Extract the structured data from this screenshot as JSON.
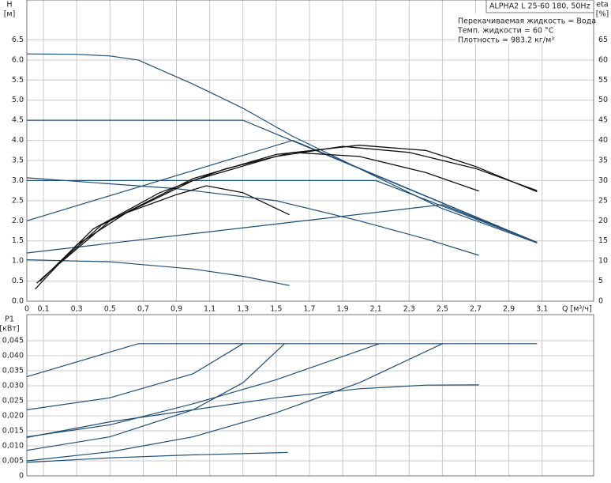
{
  "chart_data": [
    {
      "type": "line",
      "ylabel": [
        "H",
        "[м]"
      ],
      "y2label": [
        "eta",
        "[%]"
      ],
      "xlabel": "Q [м³/ч]",
      "annotations": [
        "ALPHA2 L 25-60 180, 50Hz",
        "Перекачиваемая жидкость = Вода",
        "Темп. жидкости = 60 °C",
        "Плотность = 983.2 кг/м³"
      ],
      "xlim": [
        0,
        3.41
      ],
      "xticks": [
        0,
        {
          "value": 0.1,
          "label": "0,1"
        },
        {
          "value": 0.3,
          "label": "0,3"
        },
        {
          "value": 0.5,
          "label": "0,5"
        },
        {
          "value": 0.7,
          "label": "0,7"
        },
        {
          "value": 0.9,
          "label": "0,9"
        },
        {
          "value": 1.1,
          "label": "1,1"
        },
        {
          "value": 1.3,
          "label": "1,3"
        },
        {
          "value": 1.5,
          "label": "1,5"
        },
        {
          "value": 1.7,
          "label": "1,7"
        },
        {
          "value": 1.9,
          "label": "1,9"
        },
        {
          "value": 2.1,
          "label": "2,1"
        },
        {
          "value": 2.3,
          "label": "2,3"
        },
        {
          "value": 2.5,
          "label": "2,5"
        },
        {
          "value": 2.7,
          "label": "2,7"
        },
        {
          "value": 2.9,
          "label": "2,9"
        },
        {
          "value": 3.1,
          "label": "3,1"
        }
      ],
      "ylim": [
        0,
        7
      ],
      "yticks": [
        {
          "value": 0,
          "label": "0.0"
        },
        0.5,
        {
          "value": 1,
          "label": "1.0"
        },
        1.5,
        {
          "value": 2,
          "label": "2.0"
        },
        2.5,
        {
          "value": 3,
          "label": "3.0"
        },
        3.5,
        {
          "value": 4,
          "label": "4.0"
        },
        4.5,
        {
          "value": 5,
          "label": "5.0"
        },
        5.5,
        {
          "value": 6,
          "label": "6.0"
        },
        6.5
      ],
      "y2lim": [
        0,
        70
      ],
      "y2ticks": [
        0,
        5,
        10,
        15,
        20,
        25,
        30,
        35,
        40,
        45,
        50,
        55,
        60,
        65
      ],
      "grid": true,
      "series": [
        {
          "color": "#1f4d74",
          "x": [
            0,
            0.3,
            0.5,
            0.67,
            1.0,
            1.3,
            1.6,
            2.0,
            2.5,
            3.07
          ],
          "values": [
            6.15,
            6.14,
            6.1,
            6.0,
            5.4,
            4.8,
            4.1,
            3.3,
            2.3,
            1.45
          ]
        },
        {
          "color": "#1f4d74",
          "x": [
            0,
            1.3,
            3.07
          ],
          "values": [
            4.5,
            4.5,
            1.46
          ]
        },
        {
          "color": "#1f4d74",
          "x": [
            0,
            2.1,
            3.07
          ],
          "values": [
            3.0,
            3.0,
            1.46
          ]
        },
        {
          "color": "#1f4d74",
          "x": [
            0,
            1.6,
            3.07
          ],
          "values": [
            2.0,
            4.0,
            1.46
          ]
        },
        {
          "color": "#1f4d74",
          "x": [
            0,
            2.5,
            3.07
          ],
          "values": [
            1.2,
            2.4,
            1.46
          ]
        },
        {
          "color": "#1f4d74",
          "x": [
            0,
            0.9,
            1.5,
            2.0,
            2.4,
            2.72
          ],
          "values": [
            3.07,
            2.8,
            2.5,
            2.0,
            1.55,
            1.14
          ]
        },
        {
          "color": "#1f4d74",
          "x": [
            0,
            0.5,
            1.0,
            1.3,
            1.58
          ],
          "values": [
            1.03,
            0.98,
            0.8,
            0.62,
            0.39
          ]
        },
        {
          "color": "#111111",
          "axis": "y2",
          "x": [
            0.05,
            0.3,
            0.6,
            0.9,
            1.08,
            1.3,
            1.58
          ],
          "values": [
            3,
            14,
            22,
            26.5,
            28.7,
            27,
            21.5
          ]
        },
        {
          "color": "#111111",
          "axis": "y2",
          "x": [
            0.08,
            0.4,
            0.8,
            1.2,
            1.6,
            2.0,
            2.4,
            2.72
          ],
          "values": [
            5,
            18,
            27,
            33,
            37,
            36,
            32,
            27.4
          ]
        },
        {
          "color": "#111111",
          "axis": "y2",
          "x": [
            0.1,
            0.5,
            1.0,
            1.5,
            1.9,
            2.3,
            2.7,
            3.07
          ],
          "values": [
            6,
            20,
            30,
            36,
            38.5,
            37,
            33,
            27.5
          ]
        },
        {
          "color": "#111111",
          "axis": "y2",
          "x": [
            0.06,
            0.45,
            1.0,
            1.5,
            2.0,
            2.4,
            2.7,
            3.07
          ],
          "values": [
            4.5,
            19,
            30.5,
            36.5,
            38.8,
            37.5,
            33.5,
            27.2
          ]
        }
      ]
    },
    {
      "type": "line",
      "ylabel": [
        "P1",
        "[кВт]"
      ],
      "xlim": [
        0,
        3.41
      ],
      "xticks": [
        0,
        0.1,
        0.3,
        0.5,
        0.7,
        0.9,
        1.1,
        1.3,
        1.5,
        1.7,
        1.9,
        2.1,
        2.3,
        2.5,
        2.7,
        2.9,
        3.1
      ],
      "show_xtick_labels": false,
      "ylim": [
        0,
        0.05
      ],
      "yticks": [
        0,
        {
          "value": 0.005,
          "label": "0,005"
        },
        {
          "value": 0.01,
          "label": "0,010"
        },
        {
          "value": 0.015,
          "label": "0,015"
        },
        {
          "value": 0.02,
          "label": "0,020"
        },
        {
          "value": 0.025,
          "label": "0,025"
        },
        {
          "value": 0.03,
          "label": "0,030"
        },
        {
          "value": 0.035,
          "label": "0,035"
        },
        {
          "value": 0.04,
          "label": "0,040"
        },
        {
          "value": 0.045,
          "label": "0,045"
        }
      ],
      "grid": true,
      "series": [
        {
          "color": "#1f4d74",
          "x": [
            0,
            0.67,
            3.07
          ],
          "values": [
            0.033,
            0.044,
            0.044
          ]
        },
        {
          "color": "#1f4d74",
          "x": [
            0,
            0.5,
            1.0,
            1.3
          ],
          "values": [
            0.022,
            0.026,
            0.034,
            0.044
          ]
        },
        {
          "color": "#1f4d74",
          "x": [
            0,
            0.5,
            1.0,
            1.3,
            1.55
          ],
          "values": [
            0.0085,
            0.013,
            0.022,
            0.031,
            0.044
          ]
        },
        {
          "color": "#1f4d74",
          "x": [
            0,
            0.5,
            1.0,
            1.5,
            2.12
          ],
          "values": [
            0.013,
            0.017,
            0.024,
            0.032,
            0.044
          ]
        },
        {
          "color": "#1f4d74",
          "x": [
            0,
            0.5,
            1.0,
            1.5,
            2.0,
            2.5
          ],
          "values": [
            0.005,
            0.008,
            0.013,
            0.021,
            0.031,
            0.044
          ]
        },
        {
          "color": "#1f4d74",
          "x": [
            0,
            0.5,
            1.0,
            1.5,
            2.0,
            2.4,
            2.72
          ],
          "values": [
            0.0128,
            0.018,
            0.022,
            0.026,
            0.029,
            0.0302,
            0.0303
          ]
        },
        {
          "color": "#1f4d74",
          "x": [
            0,
            0.5,
            1.0,
            1.57
          ],
          "values": [
            0.0045,
            0.006,
            0.007,
            0.0078
          ]
        }
      ]
    }
  ]
}
